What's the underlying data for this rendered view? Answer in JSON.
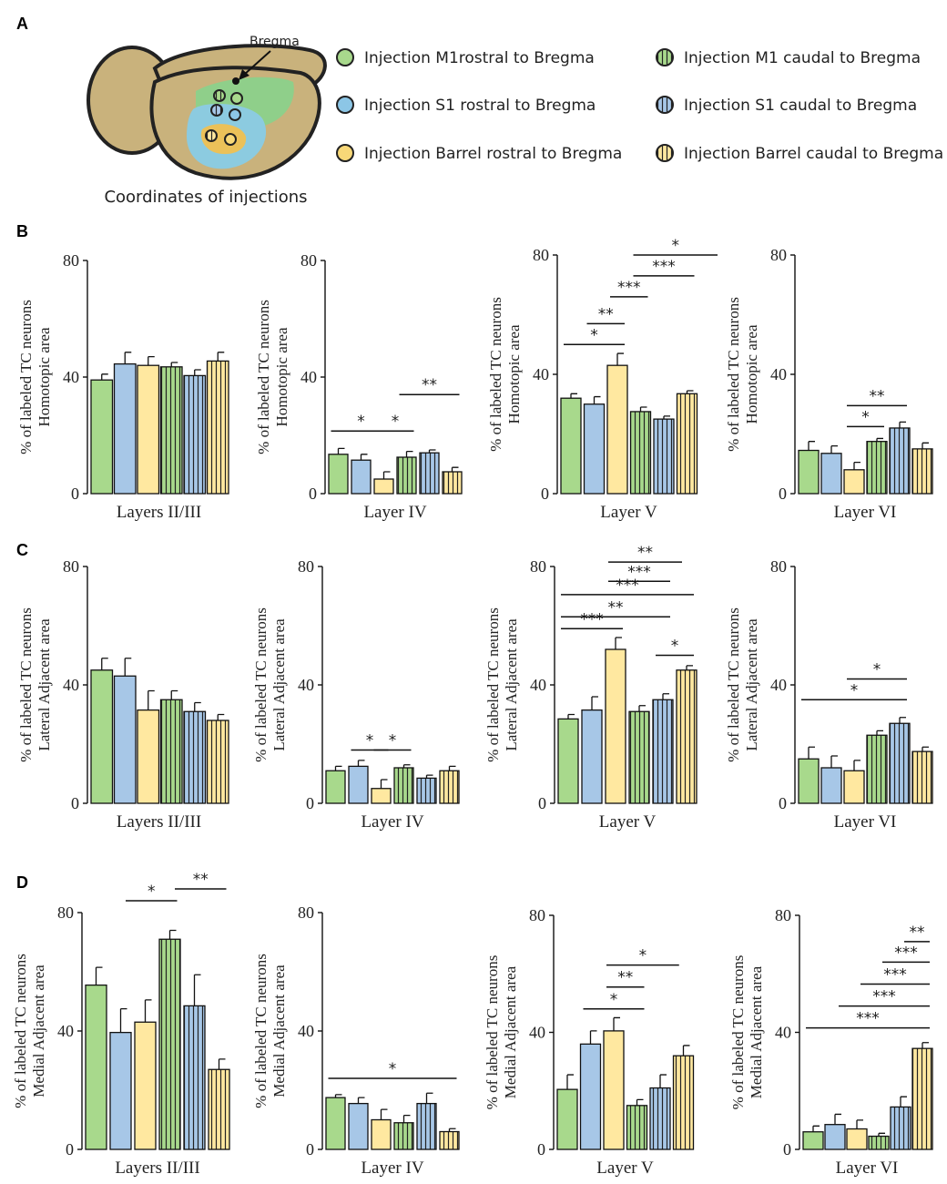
{
  "panel_labels": [
    "A",
    "B",
    "C",
    "D"
  ],
  "brain": {
    "bregma_label": "Bregma",
    "caption": "Coordinates of injections"
  },
  "legend": [
    {
      "label": "Injection M1rostral to Bregma",
      "color": "#A8D98C",
      "hatched": false
    },
    {
      "label": "Injection M1 caudal to Bregma",
      "color": "#A8D98C",
      "hatched": true
    },
    {
      "label": "Injection S1 rostral to Bregma",
      "color": "#8CC6E6",
      "hatched": false
    },
    {
      "label": "Injection S1 caudal to Bregma",
      "color": "#8CC6E6",
      "hatched": true
    },
    {
      "label": "Injection Barrel rostral to Bregma",
      "color": "#F8D878",
      "hatched": false
    },
    {
      "label": "Injection Barrel caudal to Bregma",
      "color": "#F8D878",
      "hatched": true
    }
  ],
  "colors": {
    "m1": "#A8D98C",
    "s1": "#A7C7E7",
    "barrel": "#FFE8A0",
    "brain": "#C9B27C",
    "m1_area": "#8FCF8A",
    "s1_area": "#8CCBE0",
    "barrel_area": "#F5C04A"
  },
  "chart_data": [
    {
      "type": "bar",
      "row": "B",
      "title": "Layers II/III",
      "ylabel": [
        "% of labeled TC neurons",
        "Homotopic area"
      ],
      "ylim": [
        0,
        80
      ],
      "yticks": [
        0,
        40,
        80
      ],
      "values": [
        39,
        44.5,
        44,
        43.5,
        40.5,
        45.5
      ],
      "errors": [
        2,
        4,
        3,
        1.5,
        2,
        3
      ],
      "sig": []
    },
    {
      "type": "bar",
      "row": "B",
      "title": "Layer IV",
      "ylabel": [
        "% of labeled TC neurons",
        "Homotopic area"
      ],
      "ylim": [
        0,
        80
      ],
      "yticks": [
        0,
        40,
        80
      ],
      "values": [
        13.5,
        11.5,
        5,
        12.5,
        14,
        7.5
      ],
      "errors": [
        2,
        2,
        2.5,
        2,
        1,
        1.5
      ],
      "sig": [
        {
          "from": 0,
          "to": 2,
          "y": 21.5,
          "label": "*"
        },
        {
          "from": 2,
          "to": 3,
          "y": 21.5,
          "label": "*"
        },
        {
          "from": 3,
          "to": 5,
          "y": 34,
          "label": "**"
        }
      ]
    },
    {
      "type": "bar",
      "row": "B",
      "title": "Layer V",
      "ylabel": [
        "% of labeled TC neurons",
        "Homotopic  area"
      ],
      "ylim": [
        0,
        80
      ],
      "yticks": [
        0,
        40,
        80
      ],
      "values": [
        32,
        30,
        43,
        27.5,
        25,
        33.5
      ],
      "errors": [
        1.5,
        2.5,
        4,
        1.5,
        1,
        1
      ],
      "sig": [
        {
          "from": 0,
          "to": 2,
          "y": 50,
          "label": "*"
        },
        {
          "from": 1,
          "to": 2,
          "y": 57,
          "label": "**"
        },
        {
          "from": 2,
          "to": 3,
          "y": 66,
          "label": "***"
        },
        {
          "from": 3,
          "to": 5,
          "y": 73,
          "label": "***"
        },
        {
          "from": 3,
          "to": 6,
          "y": 80,
          "label": "*"
        }
      ]
    },
    {
      "type": "bar",
      "row": "B",
      "title": "Layer VI",
      "ylabel": [
        "% of labeled TC neurons",
        "Homotopic  area"
      ],
      "ylim": [
        0,
        80
      ],
      "yticks": [
        0,
        40,
        80
      ],
      "values": [
        14.5,
        13.5,
        8,
        17.5,
        22,
        15
      ],
      "errors": [
        3,
        2.5,
        2.5,
        1,
        2,
        2
      ],
      "sig": [
        {
          "from": 2,
          "to": 3,
          "y": 22.5,
          "label": "*"
        },
        {
          "from": 2,
          "to": 4,
          "y": 29.5,
          "label": "**"
        }
      ]
    },
    {
      "type": "bar",
      "row": "C",
      "title": "Layers II/III",
      "ylabel": [
        "% of labeled TC neurons",
        "Lateral Adjacent area"
      ],
      "ylim": [
        0,
        80
      ],
      "yticks": [
        0,
        40,
        80
      ],
      "values": [
        45,
        43,
        31.5,
        35,
        31,
        28
      ],
      "errors": [
        4,
        6,
        6.5,
        3,
        3,
        2
      ],
      "sig": []
    },
    {
      "type": "bar",
      "row": "C",
      "title": "Layer IV",
      "ylabel": [
        "% of labeled TC neurons",
        "Lateral Adjacent area"
      ],
      "ylim": [
        0,
        80
      ],
      "yticks": [
        0,
        40,
        80
      ],
      "values": [
        11,
        12.5,
        5,
        12,
        8.5,
        11
      ],
      "errors": [
        1.5,
        2,
        3,
        1,
        1,
        1.5
      ],
      "sig": [
        {
          "from": 1,
          "to": 2,
          "y": 18,
          "label": "*"
        },
        {
          "from": 2,
          "to": 3,
          "y": 18,
          "label": "*"
        }
      ]
    },
    {
      "type": "bar",
      "row": "C",
      "title": "Layer V",
      "ylabel": [
        "% of labeled TC neurons",
        "Lateral Adjacent area"
      ],
      "ylim": [
        0,
        80
      ],
      "yticks": [
        0,
        40,
        80
      ],
      "values": [
        28.5,
        31.5,
        52,
        31,
        35,
        45
      ],
      "errors": [
        1.5,
        4.5,
        4,
        2,
        2,
        1.5
      ],
      "sig": [
        {
          "from": 0,
          "to": 2,
          "y": 59,
          "label": "***"
        },
        {
          "from": 4,
          "to": 5,
          "y": 50,
          "label": "*"
        },
        {
          "from": 0,
          "to": 4,
          "y": 63,
          "label": "**"
        },
        {
          "from": 0,
          "to": 5,
          "y": 70.5,
          "label": "***"
        },
        {
          "from": 2,
          "to": 4,
          "y": 75,
          "label": "***"
        },
        {
          "from": 2,
          "to": 4.5,
          "y": 81.5,
          "label": "**"
        }
      ]
    },
    {
      "type": "bar",
      "row": "C",
      "title": "Layer VI",
      "ylabel": [
        "% of labeled TC neurons",
        "Lateral Adjacent  area"
      ],
      "ylim": [
        0,
        80
      ],
      "yticks": [
        0,
        40,
        80
      ],
      "values": [
        15,
        12,
        11,
        23,
        27,
        17.5
      ],
      "errors": [
        4,
        4,
        3.5,
        1.5,
        2,
        1.5
      ],
      "sig": [
        {
          "from": 0,
          "to": 4,
          "y": 35,
          "label": "*"
        },
        {
          "from": 2,
          "to": 4,
          "y": 42,
          "label": "*"
        }
      ]
    },
    {
      "type": "bar",
      "row": "D",
      "title": "Layers II/III",
      "ylabel": [
        "% of labeled TC neurons",
        "Medial Adjacent area"
      ],
      "ylim": [
        0,
        80
      ],
      "yticks": [
        0,
        40,
        80
      ],
      "values": [
        55.5,
        39.5,
        43,
        71,
        48.5,
        27
      ],
      "errors": [
        6,
        8,
        7.5,
        3,
        10.5,
        3.5
      ],
      "sig": [
        {
          "from": 1.5,
          "to": 3,
          "y": 84,
          "label": "*"
        },
        {
          "from": 3.5,
          "to": 5,
          "y": 88,
          "label": "**"
        }
      ]
    },
    {
      "type": "bar",
      "row": "D",
      "title": "Layer IV",
      "ylabel": [
        "% of labeled TC neurons",
        "Medial Adjacent area"
      ],
      "ylim": [
        0,
        80
      ],
      "yticks": [
        0,
        40,
        80
      ],
      "values": [
        17.5,
        15.5,
        10,
        9,
        15.5,
        6
      ],
      "errors": [
        1,
        2,
        3.5,
        2.5,
        3.5,
        1
      ],
      "sig": [
        {
          "from": 0,
          "to": 5,
          "y": 24,
          "label": "*"
        }
      ]
    },
    {
      "type": "bar",
      "row": "D",
      "title": "Layer V",
      "ylabel": [
        "% of labeled TC neurons",
        "Medial Adjacent area"
      ],
      "ylim": [
        0,
        80
      ],
      "yticks": [
        0,
        40,
        80
      ],
      "values": [
        20.5,
        36,
        40.5,
        15,
        21,
        32
      ],
      "errors": [
        5,
        4.5,
        4.5,
        2,
        4.5,
        3.5
      ],
      "sig": [
        {
          "from": 1,
          "to": 3,
          "y": 48,
          "label": "*"
        },
        {
          "from": 2,
          "to": 3,
          "y": 55.5,
          "label": "**"
        },
        {
          "from": 2,
          "to": 4.5,
          "y": 63,
          "label": "*"
        }
      ]
    },
    {
      "type": "bar",
      "row": "D",
      "title": "Layer VI",
      "ylabel": [
        "% of labeled TC neurons",
        "Medial Adjacent area"
      ],
      "ylim": [
        0,
        80
      ],
      "yticks": [
        0,
        40,
        80
      ],
      "values": [
        6,
        8.5,
        7,
        4.5,
        14.5,
        34.5
      ],
      "errors": [
        2,
        3.5,
        3,
        1,
        3.5,
        2
      ],
      "sig": [
        {
          "from": 0,
          "to": 5,
          "y": 41.5,
          "label": "***"
        },
        {
          "from": 1.5,
          "to": 5,
          "y": 49,
          "label": "***"
        },
        {
          "from": 2.5,
          "to": 5,
          "y": 56.5,
          "label": "***"
        },
        {
          "from": 3.5,
          "to": 5,
          "y": 64,
          "label": "***"
        },
        {
          "from": 4.5,
          "to": 5,
          "y": 71,
          "label": "**"
        }
      ]
    }
  ]
}
